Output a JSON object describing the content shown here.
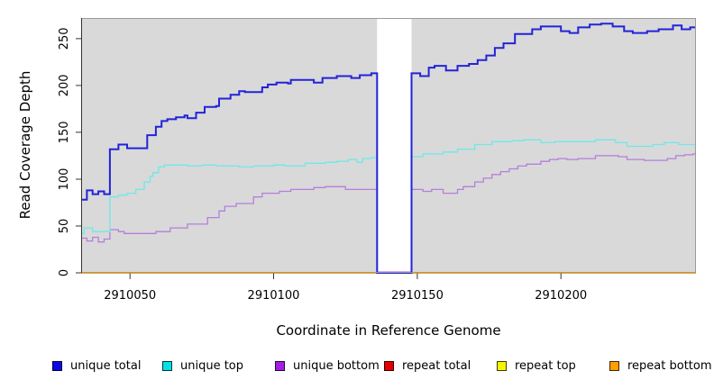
{
  "chart_data": {
    "type": "line",
    "subtype": "step-coverage",
    "title": "",
    "xlabel": "Coordinate in Reference Genome",
    "ylabel": "Read Coverage Depth",
    "xlim": [
      2910033,
      2910247
    ],
    "ylim": [
      0,
      272
    ],
    "x_ticks": [
      2910050,
      2910100,
      2910150,
      2910200
    ],
    "y_ticks": [
      0,
      50,
      100,
      150,
      200,
      250
    ],
    "grid": false,
    "legend_position": "bottom",
    "plot_bg_color": "#d9d9d9",
    "box_color": "#9a9a9a",
    "axis_color": "#333333",
    "gap_region": {
      "x_start": 2910136,
      "x_end": 2910148,
      "color": "#ffffff",
      "note": "no-coverage window, lines drop to 0"
    },
    "series": [
      {
        "name": "unique total",
        "color": "#2323d9",
        "swatch_color": "#0a0ae6",
        "points": [
          [
            2910033,
            78
          ],
          [
            2910035,
            88
          ],
          [
            2910037,
            84
          ],
          [
            2910039,
            87
          ],
          [
            2910041,
            84
          ],
          [
            2910043,
            132
          ],
          [
            2910046,
            137
          ],
          [
            2910049,
            133
          ],
          [
            2910056,
            147
          ],
          [
            2910059,
            156
          ],
          [
            2910061,
            162
          ],
          [
            2910063,
            164
          ],
          [
            2910066,
            166
          ],
          [
            2910069,
            168
          ],
          [
            2910070,
            165
          ],
          [
            2910073,
            171
          ],
          [
            2910076,
            177
          ],
          [
            2910080,
            178
          ],
          [
            2910081,
            186
          ],
          [
            2910085,
            190
          ],
          [
            2910088,
            194
          ],
          [
            2910090,
            193
          ],
          [
            2910096,
            198
          ],
          [
            2910098,
            201
          ],
          [
            2910101,
            203
          ],
          [
            2910105,
            202
          ],
          [
            2910106,
            206
          ],
          [
            2910114,
            203
          ],
          [
            2910117,
            208
          ],
          [
            2910122,
            210
          ],
          [
            2910127,
            208
          ],
          [
            2910130,
            211
          ],
          [
            2910134,
            213
          ],
          [
            2910136,
            0
          ],
          [
            2910148,
            213
          ],
          [
            2910151,
            210
          ],
          [
            2910154,
            219
          ],
          [
            2910156,
            221
          ],
          [
            2910160,
            216
          ],
          [
            2910164,
            221
          ],
          [
            2910168,
            223
          ],
          [
            2910171,
            227
          ],
          [
            2910174,
            232
          ],
          [
            2910177,
            240
          ],
          [
            2910180,
            245
          ],
          [
            2910184,
            255
          ],
          [
            2910190,
            260
          ],
          [
            2910193,
            263
          ],
          [
            2910200,
            258
          ],
          [
            2910203,
            256
          ],
          [
            2910206,
            262
          ],
          [
            2910210,
            265
          ],
          [
            2910214,
            266
          ],
          [
            2910218,
            263
          ],
          [
            2910222,
            258
          ],
          [
            2910225,
            256
          ],
          [
            2910230,
            258
          ],
          [
            2910234,
            260
          ],
          [
            2910239,
            264
          ],
          [
            2910242,
            260
          ],
          [
            2910245,
            262
          ]
        ]
      },
      {
        "name": "unique top",
        "color": "#70e8e8",
        "swatch_color": "#00e0e8",
        "points": [
          [
            2910033,
            42
          ],
          [
            2910034,
            48
          ],
          [
            2910037,
            44
          ],
          [
            2910043,
            81
          ],
          [
            2910046,
            83
          ],
          [
            2910049,
            85
          ],
          [
            2910052,
            89
          ],
          [
            2910055,
            97
          ],
          [
            2910057,
            103
          ],
          [
            2910058,
            107
          ],
          [
            2910060,
            113
          ],
          [
            2910062,
            115
          ],
          [
            2910070,
            114
          ],
          [
            2910075,
            115
          ],
          [
            2910080,
            114
          ],
          [
            2910088,
            113
          ],
          [
            2910093,
            114
          ],
          [
            2910100,
            115
          ],
          [
            2910104,
            114
          ],
          [
            2910111,
            117
          ],
          [
            2910118,
            118
          ],
          [
            2910122,
            119
          ],
          [
            2910126,
            121
          ],
          [
            2910129,
            118
          ],
          [
            2910131,
            122
          ],
          [
            2910134,
            123
          ],
          [
            2910136,
            0
          ],
          [
            2910148,
            124
          ],
          [
            2910152,
            127
          ],
          [
            2910159,
            129
          ],
          [
            2910164,
            132
          ],
          [
            2910170,
            137
          ],
          [
            2910176,
            140
          ],
          [
            2910183,
            141
          ],
          [
            2910187,
            142
          ],
          [
            2910193,
            139
          ],
          [
            2910198,
            140
          ],
          [
            2910212,
            142
          ],
          [
            2910219,
            139
          ],
          [
            2910223,
            135
          ],
          [
            2910232,
            137
          ],
          [
            2910236,
            139
          ],
          [
            2910241,
            137
          ]
        ]
      },
      {
        "name": "unique bottom",
        "color": "#b57edc",
        "swatch_color": "#a21fe0",
        "points": [
          [
            2910033,
            37
          ],
          [
            2910035,
            34
          ],
          [
            2910037,
            38
          ],
          [
            2910039,
            33
          ],
          [
            2910041,
            36
          ],
          [
            2910043,
            46
          ],
          [
            2910046,
            44
          ],
          [
            2910048,
            42
          ],
          [
            2910057,
            42
          ],
          [
            2910059,
            44
          ],
          [
            2910064,
            48
          ],
          [
            2910070,
            52
          ],
          [
            2910077,
            59
          ],
          [
            2910081,
            66
          ],
          [
            2910083,
            71
          ],
          [
            2910087,
            74
          ],
          [
            2910093,
            81
          ],
          [
            2910096,
            85
          ],
          [
            2910102,
            87
          ],
          [
            2910106,
            89
          ],
          [
            2910114,
            91
          ],
          [
            2910118,
            92
          ],
          [
            2910125,
            89
          ],
          [
            2910136,
            1
          ],
          [
            2910148,
            89
          ],
          [
            2910152,
            87
          ],
          [
            2910155,
            89
          ],
          [
            2910159,
            85
          ],
          [
            2910164,
            89
          ],
          [
            2910166,
            92
          ],
          [
            2910170,
            97
          ],
          [
            2910173,
            101
          ],
          [
            2910176,
            105
          ],
          [
            2910179,
            108
          ],
          [
            2910182,
            111
          ],
          [
            2910185,
            114
          ],
          [
            2910188,
            116
          ],
          [
            2910193,
            119
          ],
          [
            2910196,
            121
          ],
          [
            2910199,
            122
          ],
          [
            2910202,
            121
          ],
          [
            2910206,
            122
          ],
          [
            2910212,
            125
          ],
          [
            2910220,
            124
          ],
          [
            2910223,
            121
          ],
          [
            2910229,
            120
          ],
          [
            2910237,
            122
          ],
          [
            2910240,
            125
          ],
          [
            2910243,
            126
          ],
          [
            2910246,
            127
          ]
        ]
      },
      {
        "name": "repeat total",
        "color": "#dd0000",
        "swatch_color": "#e30000",
        "points": [
          [
            2910033,
            0
          ],
          [
            2910247,
            0
          ]
        ]
      },
      {
        "name": "repeat top",
        "color": "#f0f000",
        "swatch_color": "#f5f500",
        "points": [
          [
            2910033,
            0
          ],
          [
            2910247,
            0
          ]
        ]
      },
      {
        "name": "repeat bottom",
        "color": "#ff9e00",
        "swatch_color": "#ff9e00",
        "points": [
          [
            2910033,
            0
          ],
          [
            2910247,
            0
          ]
        ]
      }
    ]
  }
}
